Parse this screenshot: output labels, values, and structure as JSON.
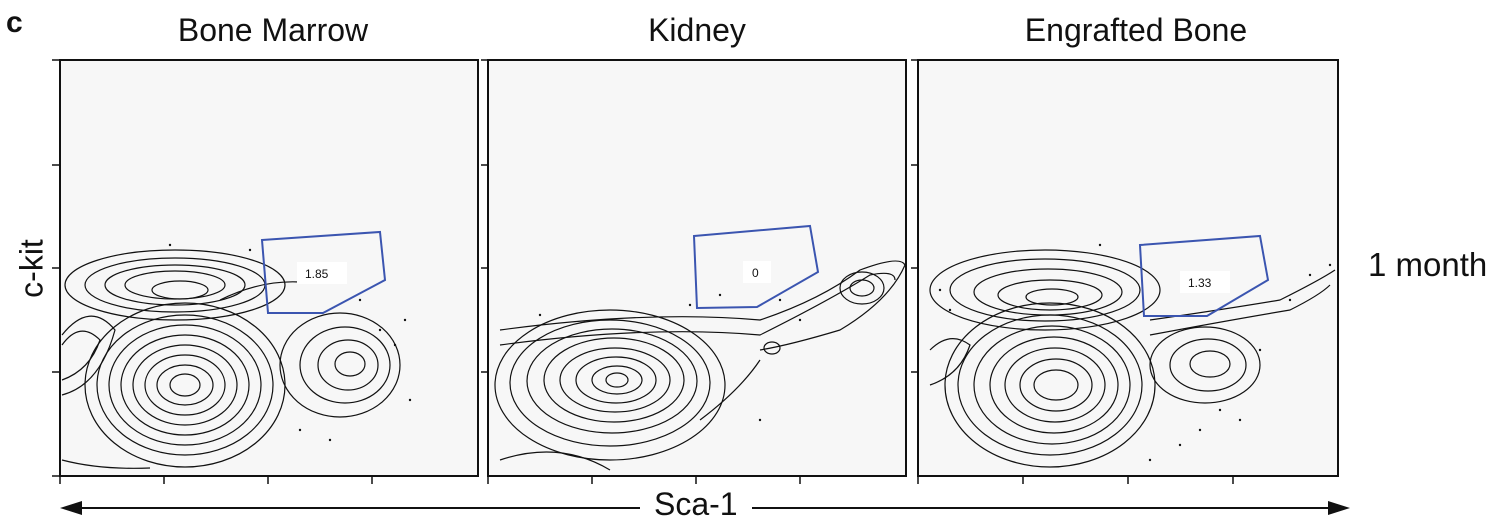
{
  "figure": {
    "panel_letter": "c",
    "row_label": "1 month",
    "y_axis_label": "c-kit",
    "x_axis_label": "Sca-1",
    "panels": [
      {
        "title": "Bone Marrow",
        "gate_value": "1.85"
      },
      {
        "title": "Kidney",
        "gate_value": "0"
      },
      {
        "title": "Engrafted Bone",
        "gate_value": "1.33"
      }
    ]
  },
  "colors": {
    "plot_background": "#f7f7f7",
    "contour": "#111111",
    "gate": "#3b55b0"
  }
}
